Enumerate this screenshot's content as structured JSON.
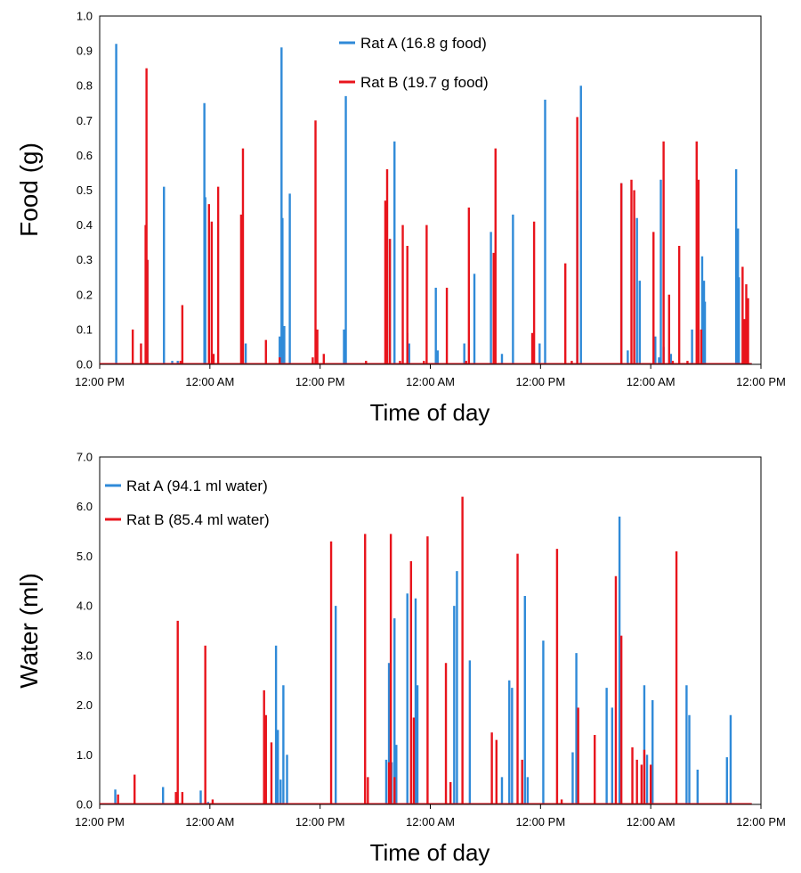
{
  "colors": {
    "rat_a": "#2f8ad8",
    "rat_b": "#e8141c"
  },
  "x_tick_labels": [
    "12:00 PM",
    "12:00 AM",
    "12:00 PM",
    "12:00 AM",
    "12:00 PM",
    "12:00 AM",
    "12:00 PM"
  ],
  "chart_data": [
    {
      "type": "bar",
      "xlabel": "Time of day",
      "ylabel": "Food (g)",
      "xlim": [
        0,
        72
      ],
      "ylim": [
        0,
        1.0
      ],
      "y_ticks": [
        "0.0",
        "0.1",
        "0.2",
        "0.3",
        "0.4",
        "0.5",
        "0.6",
        "0.7",
        "0.8",
        "0.9",
        "1.0"
      ],
      "legend_position": "top-center",
      "series": [
        {
          "name": "Rat A (16.8 g food)",
          "color": "#2f8ad8",
          "points": [
            [
              1.8,
              0.92
            ],
            [
              5.1,
              0.27
            ],
            [
              5.2,
              0.3
            ],
            [
              7.0,
              0.51
            ],
            [
              7.9,
              0.01
            ],
            [
              8.5,
              0.01
            ],
            [
              11.4,
              0.75
            ],
            [
              11.5,
              0.48
            ],
            [
              15.9,
              0.06
            ],
            [
              19.6,
              0.08
            ],
            [
              19.8,
              0.91
            ],
            [
              19.9,
              0.42
            ],
            [
              20.1,
              0.11
            ],
            [
              20.7,
              0.49
            ],
            [
              26.6,
              0.1
            ],
            [
              26.8,
              0.77
            ],
            [
              31.6,
              0.36
            ],
            [
              32.1,
              0.64
            ],
            [
              33.5,
              0.09
            ],
            [
              33.7,
              0.06
            ],
            [
              36.6,
              0.22
            ],
            [
              36.8,
              0.04
            ],
            [
              39.7,
              0.06
            ],
            [
              40.8,
              0.26
            ],
            [
              42.6,
              0.38
            ],
            [
              43.8,
              0.03
            ],
            [
              45.0,
              0.43
            ],
            [
              47.9,
              0.06
            ],
            [
              48.5,
              0.76
            ],
            [
              52.0,
              0.5
            ],
            [
              52.4,
              0.8
            ],
            [
              56.8,
              0.52
            ],
            [
              57.5,
              0.04
            ],
            [
              58.5,
              0.42
            ],
            [
              58.8,
              0.24
            ],
            [
              60.5,
              0.08
            ],
            [
              60.9,
              0.02
            ],
            [
              61.1,
              0.53
            ],
            [
              61.4,
              0.05
            ],
            [
              62.2,
              0.03
            ],
            [
              64.5,
              0.1
            ],
            [
              65.6,
              0.31
            ],
            [
              65.8,
              0.24
            ],
            [
              65.9,
              0.18
            ],
            [
              69.3,
              0.56
            ],
            [
              69.5,
              0.39
            ],
            [
              69.6,
              0.25
            ]
          ]
        },
        {
          "name": "Rat B (19.7 g food)",
          "color": "#e8141c",
          "points": [
            [
              3.6,
              0.1
            ],
            [
              4.5,
              0.06
            ],
            [
              5.0,
              0.4
            ],
            [
              5.1,
              0.85
            ],
            [
              5.2,
              0.3
            ],
            [
              8.8,
              0.01
            ],
            [
              9.0,
              0.17
            ],
            [
              11.9,
              0.46
            ],
            [
              12.2,
              0.41
            ],
            [
              12.4,
              0.03
            ],
            [
              12.9,
              0.51
            ],
            [
              15.4,
              0.43
            ],
            [
              15.6,
              0.62
            ],
            [
              18.1,
              0.07
            ],
            [
              19.6,
              0.02
            ],
            [
              23.2,
              0.02
            ],
            [
              23.5,
              0.7
            ],
            [
              23.7,
              0.1
            ],
            [
              24.4,
              0.03
            ],
            [
              29.0,
              0.01
            ],
            [
              31.1,
              0.47
            ],
            [
              31.3,
              0.56
            ],
            [
              31.6,
              0.36
            ],
            [
              32.7,
              0.01
            ],
            [
              33.0,
              0.4
            ],
            [
              33.5,
              0.34
            ],
            [
              35.3,
              0.01
            ],
            [
              35.6,
              0.4
            ],
            [
              37.8,
              0.22
            ],
            [
              39.9,
              0.01
            ],
            [
              40.2,
              0.45
            ],
            [
              42.9,
              0.32
            ],
            [
              43.1,
              0.62
            ],
            [
              47.1,
              0.09
            ],
            [
              47.3,
              0.41
            ],
            [
              50.7,
              0.29
            ],
            [
              51.4,
              0.01
            ],
            [
              52.0,
              0.71
            ],
            [
              56.8,
              0.52
            ],
            [
              57.9,
              0.53
            ],
            [
              58.2,
              0.5
            ],
            [
              60.3,
              0.38
            ],
            [
              61.4,
              0.64
            ],
            [
              62.0,
              0.2
            ],
            [
              62.4,
              0.01
            ],
            [
              63.1,
              0.34
            ],
            [
              64.0,
              0.01
            ],
            [
              65.0,
              0.64
            ],
            [
              65.2,
              0.53
            ],
            [
              65.5,
              0.1
            ],
            [
              70.0,
              0.28
            ],
            [
              70.2,
              0.13
            ],
            [
              70.4,
              0.23
            ],
            [
              70.6,
              0.19
            ]
          ]
        }
      ]
    },
    {
      "type": "bar",
      "xlabel": "Time of day",
      "ylabel": "Water (ml)",
      "xlim": [
        0,
        72
      ],
      "ylim": [
        0,
        7.0
      ],
      "y_ticks": [
        "0.0",
        "1.0",
        "2.0",
        "3.0",
        "4.0",
        "5.0",
        "6.0",
        "7.0"
      ],
      "legend_position": "top-left",
      "series": [
        {
          "name": "Rat A (94.1 ml water)",
          "color": "#2f8ad8",
          "points": [
            [
              1.7,
              0.3
            ],
            [
              6.9,
              0.35
            ],
            [
              11.0,
              0.28
            ],
            [
              11.8,
              0.05
            ],
            [
              19.2,
              3.2
            ],
            [
              19.4,
              1.5
            ],
            [
              19.7,
              0.5
            ],
            [
              20.0,
              2.4
            ],
            [
              20.4,
              1.0
            ],
            [
              25.7,
              4.0
            ],
            [
              31.2,
              0.9
            ],
            [
              31.5,
              2.85
            ],
            [
              31.8,
              0.85
            ],
            [
              32.1,
              3.75
            ],
            [
              32.3,
              1.2
            ],
            [
              33.5,
              4.25
            ],
            [
              34.4,
              4.15
            ],
            [
              34.6,
              2.4
            ],
            [
              38.6,
              4.0
            ],
            [
              38.9,
              4.7
            ],
            [
              40.3,
              2.9
            ],
            [
              43.8,
              0.55
            ],
            [
              44.6,
              2.5
            ],
            [
              44.9,
              2.35
            ],
            [
              46.3,
              4.2
            ],
            [
              46.6,
              0.55
            ],
            [
              48.3,
              3.3
            ],
            [
              51.5,
              1.05
            ],
            [
              51.9,
              3.05
            ],
            [
              55.2,
              2.35
            ],
            [
              55.8,
              1.95
            ],
            [
              56.6,
              5.8
            ],
            [
              59.3,
              2.4
            ],
            [
              59.6,
              1.0
            ],
            [
              60.2,
              2.1
            ],
            [
              63.9,
              2.4
            ],
            [
              64.2,
              1.8
            ],
            [
              65.1,
              0.7
            ],
            [
              68.3,
              0.95
            ],
            [
              68.7,
              1.8
            ]
          ]
        },
        {
          "name": "Rat B (85.4 ml water)",
          "color": "#e8141c",
          "points": [
            [
              2.0,
              0.2
            ],
            [
              3.8,
              0.6
            ],
            [
              8.3,
              0.25
            ],
            [
              8.5,
              3.7
            ],
            [
              9.0,
              0.25
            ],
            [
              11.5,
              3.2
            ],
            [
              12.3,
              0.1
            ],
            [
              17.9,
              2.3
            ],
            [
              18.1,
              1.8
            ],
            [
              18.7,
              1.25
            ],
            [
              25.2,
              5.3
            ],
            [
              28.9,
              5.45
            ],
            [
              29.2,
              0.55
            ],
            [
              31.5,
              0.85
            ],
            [
              31.7,
              5.45
            ],
            [
              32.1,
              0.55
            ],
            [
              33.9,
              4.9
            ],
            [
              34.2,
              1.75
            ],
            [
              35.7,
              5.4
            ],
            [
              37.7,
              2.85
            ],
            [
              38.2,
              0.45
            ],
            [
              39.5,
              6.2
            ],
            [
              42.7,
              1.45
            ],
            [
              43.2,
              1.3
            ],
            [
              45.5,
              5.05
            ],
            [
              46.0,
              0.9
            ],
            [
              49.8,
              5.15
            ],
            [
              50.3,
              0.1
            ],
            [
              52.1,
              1.95
            ],
            [
              53.9,
              1.4
            ],
            [
              56.2,
              4.6
            ],
            [
              56.8,
              3.4
            ],
            [
              58.0,
              1.15
            ],
            [
              58.5,
              0.9
            ],
            [
              59.0,
              0.8
            ],
            [
              59.3,
              1.1
            ],
            [
              60.0,
              0.8
            ],
            [
              62.8,
              5.1
            ]
          ]
        }
      ]
    }
  ]
}
